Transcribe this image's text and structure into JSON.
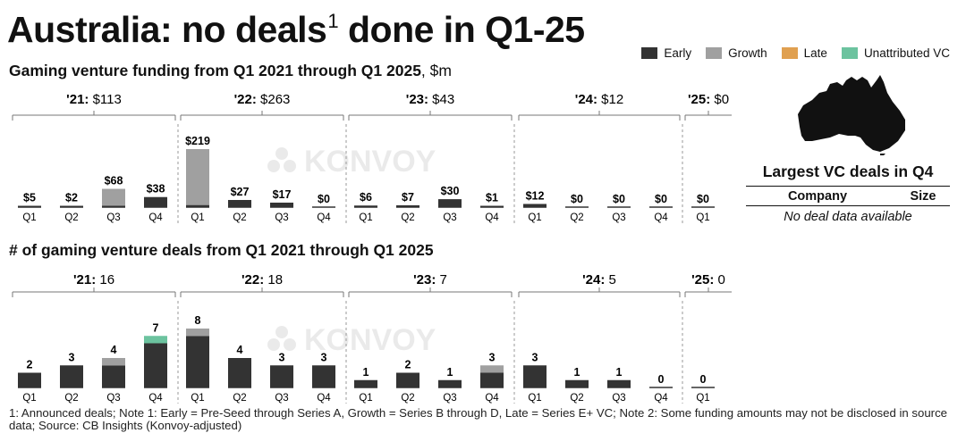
{
  "title": {
    "main": "Australia: no deals",
    "superscript": "1",
    "rest": "done in Q1-25"
  },
  "legend": {
    "items": [
      {
        "label": "Early",
        "color": "#333333"
      },
      {
        "label": "Growth",
        "color": "#a0a0a0"
      },
      {
        "label": "Late",
        "color": "#e0a050"
      },
      {
        "label": "Unattributed VC",
        "color": "#6cc39f"
      }
    ]
  },
  "watermark": "KONVOY",
  "largest_deals": {
    "title": "Largest VC deals in Q4",
    "company_header": "Company",
    "size_header": "Size",
    "empty_message": "No deal data available"
  },
  "footnote": "1: Announced deals; Note 1: Early = Pre-Seed through Series A, Growth = Series B through D, Late = Series E+ VC; Note 2: Some funding amounts may not be disclosed in source data; Source: CB Insights (Konvoy-adjusted)",
  "chart_data": [
    {
      "type": "bar",
      "title": "Gaming venture funding from Q1 2021 through Q1 2025",
      "title_unit": ", $m",
      "categories": [
        "Q1",
        "Q2",
        "Q3",
        "Q4",
        "Q1",
        "Q2",
        "Q3",
        "Q4",
        "Q1",
        "Q2",
        "Q3",
        "Q4",
        "Q1",
        "Q2",
        "Q3",
        "Q4",
        "Q1"
      ],
      "series": [
        {
          "name": "Early",
          "values": [
            5,
            2,
            4,
            38,
            8,
            27,
            17,
            0,
            6,
            7,
            30,
            1,
            12,
            0,
            0,
            0,
            0
          ]
        },
        {
          "name": "Growth",
          "values": [
            0,
            0,
            64,
            0,
            211,
            0,
            0,
            0,
            0,
            0,
            0,
            0,
            0,
            0,
            0,
            0,
            0
          ]
        },
        {
          "name": "Late",
          "values": [
            0,
            0,
            0,
            0,
            0,
            0,
            0,
            0,
            0,
            0,
            0,
            0,
            0,
            0,
            0,
            0,
            0
          ]
        },
        {
          "name": "Unattributed VC",
          "values": [
            0,
            0,
            0,
            0,
            0,
            0,
            0,
            0,
            0,
            0,
            0,
            0,
            0,
            0,
            0,
            0,
            0
          ]
        }
      ],
      "data_labels": [
        "$5",
        "$2",
        "$68",
        "$38",
        "$219",
        "$27",
        "$17",
        "$0",
        "$6",
        "$7",
        "$30",
        "$1",
        "$12",
        "$0",
        "$0",
        "$0",
        "$0"
      ],
      "year_groups": [
        {
          "year": "'21:",
          "total": "$113"
        },
        {
          "year": "'22:",
          "total": "$263"
        },
        {
          "year": "'23:",
          "total": "$43"
        },
        {
          "year": "'24:",
          "total": "$12"
        },
        {
          "year": "'25:",
          "total": "$0"
        }
      ],
      "ylim": [
        0,
        219
      ]
    },
    {
      "type": "bar",
      "title": "# of gaming venture deals from Q1 2021 through Q1 2025",
      "title_unit": "",
      "categories": [
        "Q1",
        "Q2",
        "Q3",
        "Q4",
        "Q1",
        "Q2",
        "Q3",
        "Q4",
        "Q1",
        "Q2",
        "Q3",
        "Q4",
        "Q1",
        "Q2",
        "Q3",
        "Q4",
        "Q1"
      ],
      "series": [
        {
          "name": "Early",
          "values": [
            2,
            3,
            3,
            6,
            7,
            4,
            3,
            3,
            1,
            2,
            1,
            2,
            3,
            1,
            1,
            0,
            0
          ]
        },
        {
          "name": "Growth",
          "values": [
            0,
            0,
            1,
            0,
            1,
            0,
            0,
            0,
            0,
            0,
            0,
            1,
            0,
            0,
            0,
            0,
            0
          ]
        },
        {
          "name": "Late",
          "values": [
            0,
            0,
            0,
            0,
            0,
            0,
            0,
            0,
            0,
            0,
            0,
            0,
            0,
            0,
            0,
            0,
            0
          ]
        },
        {
          "name": "Unattributed VC",
          "values": [
            0,
            0,
            0,
            1,
            0,
            0,
            0,
            0,
            0,
            0,
            0,
            0,
            0,
            0,
            0,
            0,
            0
          ]
        }
      ],
      "data_labels": [
        "2",
        "3",
        "4",
        "7",
        "8",
        "4",
        "3",
        "3",
        "1",
        "2",
        "1",
        "3",
        "3",
        "1",
        "1",
        "0",
        "0"
      ],
      "year_groups": [
        {
          "year": "'21:",
          "total": "16"
        },
        {
          "year": "'22:",
          "total": "18"
        },
        {
          "year": "'23:",
          "total": "7"
        },
        {
          "year": "'24:",
          "total": "5"
        },
        {
          "year": "'25:",
          "total": "0"
        }
      ],
      "ylim": [
        0,
        8
      ]
    }
  ]
}
